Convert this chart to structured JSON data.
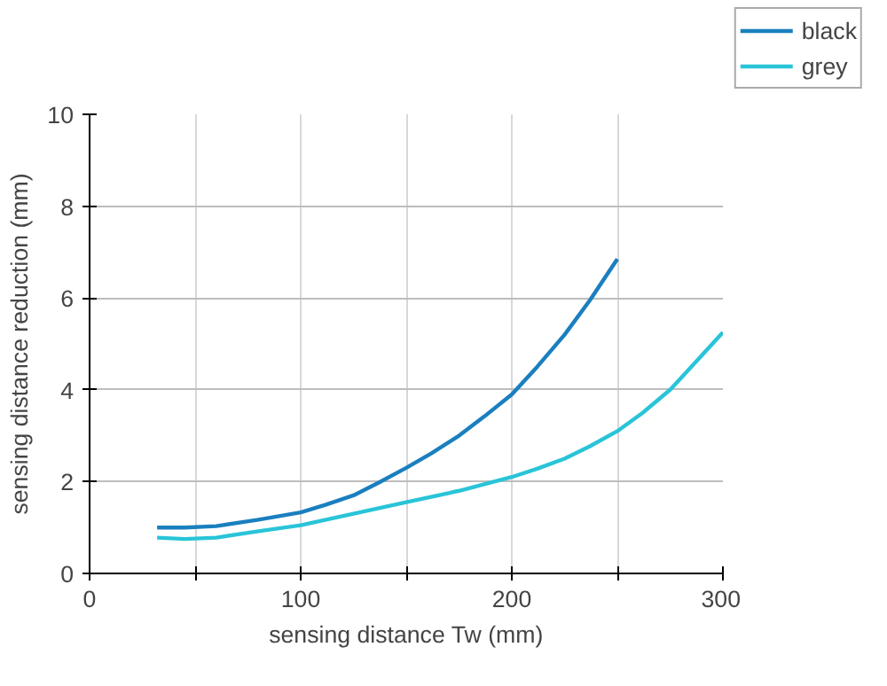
{
  "chart_data": {
    "type": "line",
    "xlabel": "sensing distance Tw (mm)",
    "ylabel": "sensing distance reduction (mm)",
    "xlim": [
      0,
      300
    ],
    "ylim": [
      0,
      10
    ],
    "xticks": [
      0,
      {
        "value": 50,
        "label": null
      },
      100,
      {
        "value": 150,
        "label": null
      },
      200,
      {
        "value": 250,
        "label": null
      },
      300
    ],
    "yticks": [
      0,
      2,
      4,
      6,
      8,
      10
    ],
    "grid": true,
    "legend": "top right",
    "marker": "none",
    "line_style": "solid",
    "series": [
      {
        "name": "black",
        "color": "#1a7fbf",
        "x": [
          32,
          45,
          60,
          80,
          100,
          112,
          125,
          137,
          150,
          162,
          175,
          187,
          200,
          212,
          225,
          237,
          250
        ],
        "values": [
          1.0,
          1.0,
          1.03,
          1.17,
          1.33,
          1.5,
          1.7,
          1.98,
          2.3,
          2.62,
          3.0,
          3.42,
          3.9,
          4.5,
          5.2,
          5.95,
          6.85
        ]
      },
      {
        "name": "grey",
        "color": "#29c4d8",
        "x": [
          32,
          45,
          60,
          80,
          100,
          125,
          150,
          175,
          200,
          212,
          225,
          237,
          250,
          262,
          275,
          287,
          300
        ],
        "values": [
          0.78,
          0.75,
          0.78,
          0.92,
          1.05,
          1.3,
          1.55,
          1.8,
          2.1,
          2.28,
          2.5,
          2.77,
          3.1,
          3.5,
          4.0,
          4.6,
          5.25
        ]
      }
    ]
  }
}
